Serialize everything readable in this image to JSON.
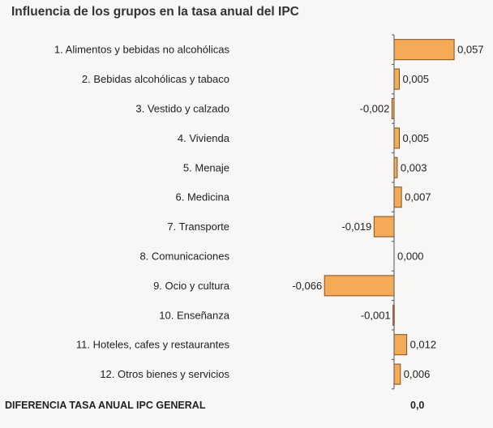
{
  "title": "Influencia de los grupos en la tasa anual del IPC",
  "colors": {
    "bar_fill": "#f4aa56",
    "bar_stroke": "#7a5224",
    "axis": "#555555"
  },
  "chart_data": {
    "type": "bar",
    "orientation": "horizontal",
    "categories": [
      "1. Alimentos y bebidas no alcohólicas",
      "2. Bebidas alcohólicas y tabaco",
      "3. Vestido y calzado",
      "4. Vivienda",
      "5. Menaje",
      "6. Medicina",
      "7. Transporte",
      "8. Comunicaciones",
      "9. Ocio y cultura",
      "10. Enseñanza",
      "11. Hoteles, cafes y restaurantes",
      "12. Otros bienes y servicios"
    ],
    "values": [
      0.057,
      0.005,
      -0.002,
      0.005,
      0.003,
      0.007,
      -0.019,
      0.0,
      -0.066,
      -0.001,
      0.012,
      0.006
    ],
    "value_labels": [
      "0,057",
      "0,005",
      "-0,002",
      "0,005",
      "0,003",
      "0,007",
      "-0,019",
      "0,000",
      "-0,066",
      "-0,001",
      "0,012",
      "0,006"
    ],
    "grid": false,
    "legend": "none"
  },
  "footer": {
    "label": "DIFERENCIA TASA ANUAL IPC GENERAL",
    "value": "0,0"
  }
}
